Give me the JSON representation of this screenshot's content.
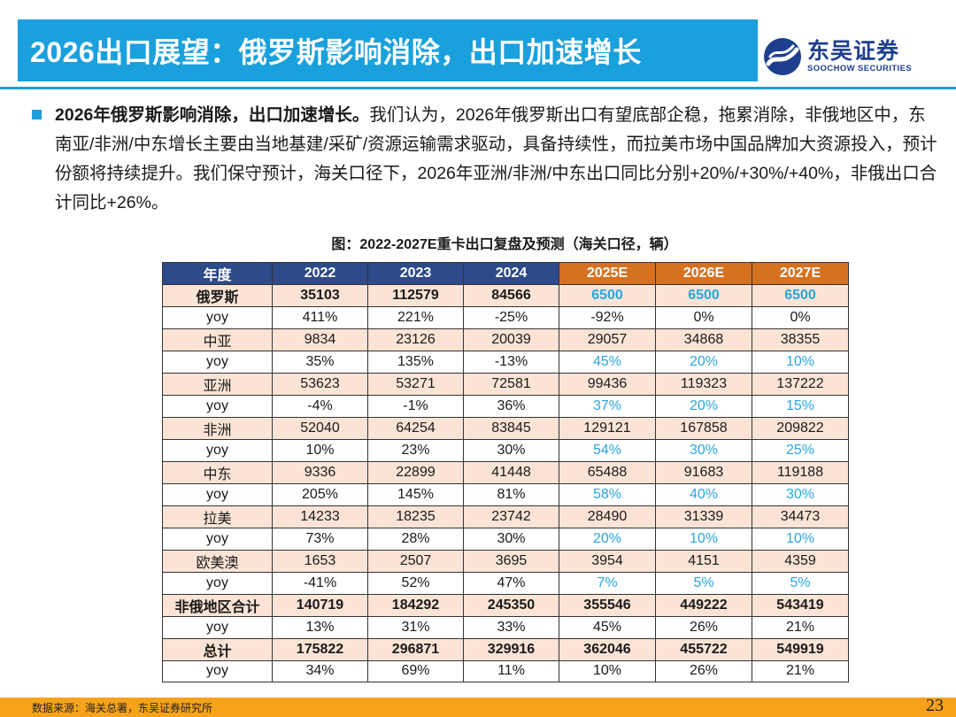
{
  "title": "2026出口展望：俄罗斯影响消除，出口加速增长",
  "logo": {
    "cn": "东吴证券",
    "en": "SOOCHOW SECURITIES",
    "primary_color": "#1e3f8f"
  },
  "paragraph": {
    "bold_lead": "2026年俄罗斯影响消除，出口加速增长。",
    "body": "我们认为，2026年俄罗斯出口有望底部企稳，拖累消除，非俄地区中，东南亚/非洲/中东增长主要由当地基建/采矿/资源运输需求驱动，具备持续性，而拉美市场中国品牌加大资源投入，预计份额将持续提升。我们保守预计，海关口径下，2026年亚洲/非洲/中东出口同比分别+20%/+30%/+40%，非俄出口合计同比+26%。"
  },
  "figure_caption": "图：2022-2027E重卡出口复盘及预测（海关口径，辆）",
  "table": {
    "header": [
      "年度",
      "2022",
      "2023",
      "2024",
      "2025E",
      "2026E",
      "2027E"
    ],
    "rows": [
      {
        "label": "俄罗斯",
        "type": "region",
        "bold": true,
        "values": [
          "35103",
          "112579",
          "84566",
          "6500",
          "6500",
          "6500"
        ],
        "blue": [
          false,
          false,
          false,
          true,
          true,
          true
        ]
      },
      {
        "label": "yoy",
        "type": "yoy",
        "bold": false,
        "values": [
          "411%",
          "221%",
          "-25%",
          "-92%",
          "0%",
          "0%"
        ],
        "blue": [
          false,
          false,
          false,
          false,
          false,
          false
        ]
      },
      {
        "label": "中亚",
        "type": "region",
        "bold": false,
        "values": [
          "9834",
          "23126",
          "20039",
          "29057",
          "34868",
          "38355"
        ],
        "blue": [
          false,
          false,
          false,
          false,
          false,
          false
        ]
      },
      {
        "label": "yoy",
        "type": "yoy",
        "bold": false,
        "values": [
          "35%",
          "135%",
          "-13%",
          "45%",
          "20%",
          "10%"
        ],
        "blue": [
          false,
          false,
          false,
          true,
          true,
          true
        ]
      },
      {
        "label": "亚洲",
        "type": "region",
        "bold": false,
        "values": [
          "53623",
          "53271",
          "72581",
          "99436",
          "119323",
          "137222"
        ],
        "blue": [
          false,
          false,
          false,
          false,
          false,
          false
        ]
      },
      {
        "label": "yoy",
        "type": "yoy",
        "bold": false,
        "values": [
          "-4%",
          "-1%",
          "36%",
          "37%",
          "20%",
          "15%"
        ],
        "blue": [
          false,
          false,
          false,
          true,
          true,
          true
        ]
      },
      {
        "label": "非洲",
        "type": "region",
        "bold": false,
        "values": [
          "52040",
          "64254",
          "83845",
          "129121",
          "167858",
          "209822"
        ],
        "blue": [
          false,
          false,
          false,
          false,
          false,
          false
        ]
      },
      {
        "label": "yoy",
        "type": "yoy",
        "bold": false,
        "values": [
          "10%",
          "23%",
          "30%",
          "54%",
          "30%",
          "25%"
        ],
        "blue": [
          false,
          false,
          false,
          true,
          true,
          true
        ]
      },
      {
        "label": "中东",
        "type": "region",
        "bold": false,
        "values": [
          "9336",
          "22899",
          "41448",
          "65488",
          "91683",
          "119188"
        ],
        "blue": [
          false,
          false,
          false,
          false,
          false,
          false
        ]
      },
      {
        "label": "yoy",
        "type": "yoy",
        "bold": false,
        "values": [
          "205%",
          "145%",
          "81%",
          "58%",
          "40%",
          "30%"
        ],
        "blue": [
          false,
          false,
          false,
          true,
          true,
          true
        ]
      },
      {
        "label": "拉美",
        "type": "region",
        "bold": false,
        "values": [
          "14233",
          "18235",
          "23742",
          "28490",
          "31339",
          "34473"
        ],
        "blue": [
          false,
          false,
          false,
          false,
          false,
          false
        ]
      },
      {
        "label": "yoy",
        "type": "yoy",
        "bold": false,
        "values": [
          "73%",
          "28%",
          "30%",
          "20%",
          "10%",
          "10%"
        ],
        "blue": [
          false,
          false,
          false,
          true,
          true,
          true
        ]
      },
      {
        "label": "欧美澳",
        "type": "region",
        "bold": false,
        "values": [
          "1653",
          "2507",
          "3695",
          "3954",
          "4151",
          "4359"
        ],
        "blue": [
          false,
          false,
          false,
          false,
          false,
          false
        ]
      },
      {
        "label": "yoy",
        "type": "yoy",
        "bold": false,
        "values": [
          "-41%",
          "52%",
          "47%",
          "7%",
          "5%",
          "5%"
        ],
        "blue": [
          false,
          false,
          false,
          true,
          true,
          true
        ]
      },
      {
        "label": "非俄地区合计",
        "type": "total",
        "bold": true,
        "values": [
          "140719",
          "184292",
          "245350",
          "355546",
          "449222",
          "543419"
        ],
        "blue": [
          false,
          false,
          false,
          false,
          false,
          false
        ]
      },
      {
        "label": "yoy",
        "type": "yoy",
        "bold": false,
        "values": [
          "13%",
          "31%",
          "33%",
          "45%",
          "26%",
          "21%"
        ],
        "blue": [
          false,
          false,
          false,
          false,
          false,
          false
        ]
      },
      {
        "label": "总计",
        "type": "total",
        "bold": true,
        "values": [
          "175822",
          "296871",
          "329916",
          "362046",
          "455722",
          "549919"
        ],
        "blue": [
          false,
          false,
          false,
          false,
          false,
          false
        ]
      },
      {
        "label": "yoy",
        "type": "yoy",
        "bold": false,
        "values": [
          "34%",
          "69%",
          "11%",
          "10%",
          "26%",
          "21%"
        ],
        "blue": [
          false,
          false,
          false,
          false,
          false,
          false
        ]
      }
    ]
  },
  "source": "数据来源：海关总署，东吴证券研究所",
  "page_number": "23",
  "colors": {
    "accent_blue": "#1aa0dc",
    "header_hist": "#2d4a8a",
    "header_proj": "#d6711f",
    "region_fill": "#fbe4d6",
    "forecast_blue_text": "#2aa6e0",
    "footer_orange": "#f7a21b"
  }
}
